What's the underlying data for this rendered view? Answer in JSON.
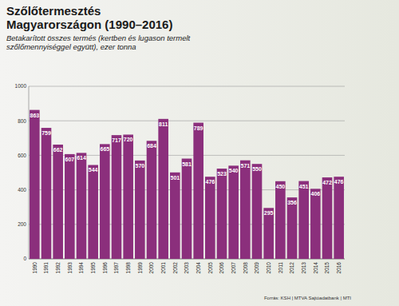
{
  "chart_data": {
    "type": "bar",
    "title": "Szőlőtermesztés Magyarországon (1990–2016)",
    "subtitle": "Betakarított összes termés (kertben és lugason termelt szőlőmennyiséggel együtt), ezer tonna",
    "source": "Forrás: KSH | MTVA Sajtóadatbank | MTI",
    "categories": [
      "1990",
      "1991",
      "1992",
      "1993",
      "1994",
      "1995",
      "1996",
      "1997",
      "1998",
      "1999",
      "2000",
      "2001",
      "2002",
      "2003",
      "2004",
      "2005",
      "2006",
      "2007",
      "2008",
      "2009",
      "2010",
      "2011",
      "2012",
      "2013",
      "2014",
      "2015",
      "2016"
    ],
    "values": [
      863,
      759,
      662,
      607,
      614,
      544,
      665,
      717,
      720,
      570,
      684,
      811,
      501,
      581,
      789,
      476,
      523,
      540,
      571,
      550,
      295,
      450,
      356,
      451,
      406,
      472,
      476
    ],
    "color": "#8b2f7c",
    "ylim": [
      0,
      1000
    ],
    "yticks": [
      0,
      200,
      400,
      600,
      800,
      1000
    ],
    "grid": true,
    "data_labels": true
  }
}
